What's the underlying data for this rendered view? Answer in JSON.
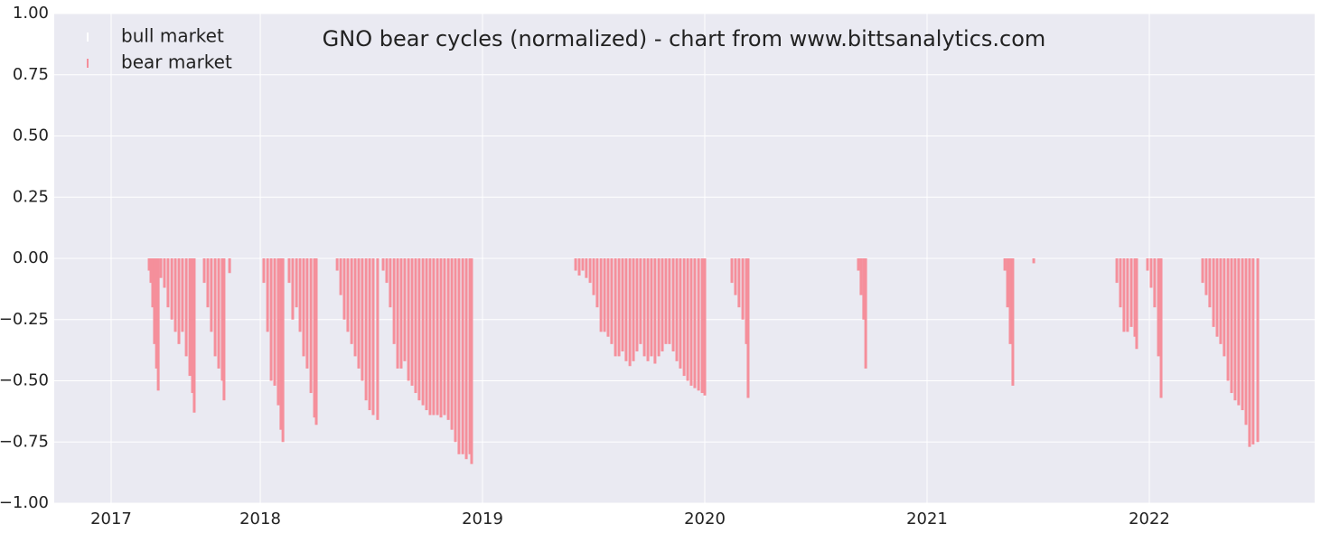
{
  "chart_data": {
    "type": "bar",
    "title": "GNO bear cycles (normalized)  - chart from www.bittsanalytics.com",
    "xlim": [
      2017.073,
      2022.744
    ],
    "xticks": [
      {
        "value": 2017.329,
        "label": "2017"
      },
      2018,
      2019,
      2020,
      2021,
      2022
    ],
    "ylim": [
      -1,
      1
    ],
    "yticks": [
      {
        "value": -1,
        "label": "−1.00"
      },
      {
        "value": -0.75,
        "label": "−0.75"
      },
      {
        "value": -0.5,
        "label": "−0.50"
      },
      {
        "value": -0.25,
        "label": "−0.25"
      },
      {
        "value": 0,
        "label": "0.00"
      },
      {
        "value": 0.25,
        "label": "0.25"
      },
      {
        "value": 0.5,
        "label": "0.50"
      },
      {
        "value": 0.75,
        "label": "0.75"
      },
      {
        "value": 1,
        "label": "1.00"
      }
    ],
    "grid": true,
    "legend": "upper-left",
    "series": [
      {
        "name": "bull market",
        "color": "#ffffff",
        "x": [],
        "values": []
      },
      {
        "name": "bear market",
        "color": "#f58f9b",
        "x": [
          2017.5,
          2017.508,
          2017.516,
          2017.524,
          2017.533,
          2017.541,
          2017.553,
          2017.569,
          2017.585,
          2017.602,
          2017.618,
          2017.634,
          2017.65,
          2017.667,
          2017.683,
          2017.695,
          2017.703,
          2017.748,
          2017.764,
          2017.78,
          2017.797,
          2017.813,
          2017.829,
          2017.837,
          2017.862,
          2018.016,
          2018.033,
          2018.049,
          2018.065,
          2018.081,
          2018.093,
          2018.102,
          2018.13,
          2018.146,
          2018.163,
          2018.179,
          2018.195,
          2018.211,
          2018.228,
          2018.244,
          2018.252,
          2018.346,
          2018.362,
          2018.378,
          2018.394,
          2018.411,
          2018.427,
          2018.443,
          2018.459,
          2018.476,
          2018.492,
          2018.508,
          2018.528,
          2018.553,
          2018.569,
          2018.585,
          2018.602,
          2018.618,
          2018.634,
          2018.65,
          2018.667,
          2018.683,
          2018.699,
          2018.715,
          2018.732,
          2018.748,
          2018.764,
          2018.78,
          2018.797,
          2018.813,
          2018.829,
          2018.846,
          2018.862,
          2018.878,
          2018.894,
          2018.911,
          2018.927,
          2018.943,
          2018.951,
          2019.419,
          2019.435,
          2019.451,
          2019.467,
          2019.484,
          2019.5,
          2019.516,
          2019.533,
          2019.549,
          2019.565,
          2019.581,
          2019.598,
          2019.614,
          2019.63,
          2019.646,
          2019.663,
          2019.679,
          2019.695,
          2019.711,
          2019.728,
          2019.744,
          2019.76,
          2019.776,
          2019.793,
          2019.809,
          2019.825,
          2019.841,
          2019.858,
          2019.874,
          2019.89,
          2019.907,
          2019.923,
          2019.939,
          2019.955,
          2019.972,
          2019.988,
          2020.0,
          2020.122,
          2020.138,
          2020.154,
          2020.171,
          2020.187,
          2020.195,
          2020.691,
          2020.703,
          2020.715,
          2020.724,
          2021.35,
          2021.362,
          2021.374,
          2021.386,
          2021.48,
          2021.854,
          2021.87,
          2021.886,
          2021.902,
          2021.919,
          2021.935,
          2021.943,
          2021.992,
          2022.008,
          2022.024,
          2022.041,
          2022.053,
          2022.24,
          2022.256,
          2022.272,
          2022.289,
          2022.305,
          2022.321,
          2022.337,
          2022.354,
          2022.37,
          2022.386,
          2022.402,
          2022.419,
          2022.435,
          2022.451,
          2022.467,
          2022.488
        ],
        "values": [
          -0.05,
          -0.1,
          -0.2,
          -0.35,
          -0.45,
          -0.54,
          -0.08,
          -0.12,
          -0.2,
          -0.25,
          -0.3,
          -0.35,
          -0.3,
          -0.4,
          -0.48,
          -0.55,
          -0.63,
          -0.1,
          -0.2,
          -0.3,
          -0.4,
          -0.45,
          -0.5,
          -0.58,
          -0.06,
          -0.1,
          -0.3,
          -0.5,
          -0.52,
          -0.6,
          -0.7,
          -0.75,
          -0.1,
          -0.25,
          -0.2,
          -0.3,
          -0.4,
          -0.45,
          -0.55,
          -0.65,
          -0.68,
          -0.05,
          -0.15,
          -0.25,
          -0.3,
          -0.35,
          -0.4,
          -0.45,
          -0.5,
          -0.58,
          -0.62,
          -0.64,
          -0.66,
          -0.05,
          -0.1,
          -0.2,
          -0.35,
          -0.45,
          -0.45,
          -0.42,
          -0.5,
          -0.52,
          -0.55,
          -0.58,
          -0.6,
          -0.62,
          -0.64,
          -0.64,
          -0.64,
          -0.65,
          -0.64,
          -0.66,
          -0.7,
          -0.75,
          -0.8,
          -0.8,
          -0.82,
          -0.8,
          -0.84,
          -0.05,
          -0.07,
          -0.05,
          -0.08,
          -0.1,
          -0.15,
          -0.2,
          -0.3,
          -0.3,
          -0.32,
          -0.35,
          -0.4,
          -0.4,
          -0.38,
          -0.42,
          -0.44,
          -0.42,
          -0.38,
          -0.35,
          -0.4,
          -0.42,
          -0.4,
          -0.43,
          -0.4,
          -0.38,
          -0.35,
          -0.35,
          -0.38,
          -0.42,
          -0.45,
          -0.48,
          -0.5,
          -0.52,
          -0.53,
          -0.54,
          -0.55,
          -0.56,
          -0.1,
          -0.15,
          -0.2,
          -0.25,
          -0.35,
          -0.57,
          -0.05,
          -0.15,
          -0.25,
          -0.45,
          -0.05,
          -0.2,
          -0.35,
          -0.52,
          -0.02,
          -0.1,
          -0.2,
          -0.3,
          -0.3,
          -0.28,
          -0.32,
          -0.37,
          -0.05,
          -0.12,
          -0.2,
          -0.4,
          -0.57,
          -0.1,
          -0.15,
          -0.2,
          -0.28,
          -0.32,
          -0.35,
          -0.4,
          -0.5,
          -0.55,
          -0.58,
          -0.6,
          -0.62,
          -0.68,
          -0.77,
          -0.76,
          -0.75
        ]
      }
    ]
  }
}
